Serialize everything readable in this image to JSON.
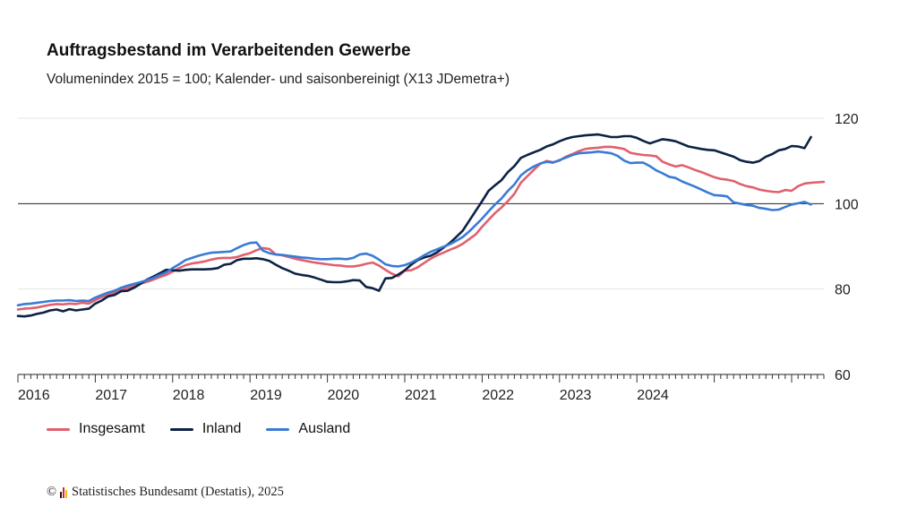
{
  "chart_data": {
    "type": "line",
    "title": "Auftragsbestand im Verarbeitenden Gewerbe",
    "subtitle": "Volumenindex 2015 = 100; Kalender- und saisonbereinigt (X13 JDemetra+)",
    "x_start": "2016-01",
    "x_ticks": [
      "2016",
      "2017",
      "2018",
      "2019",
      "2020",
      "2021",
      "2022",
      "2023",
      "2024"
    ],
    "ylim": [
      60,
      120
    ],
    "y_ticks": [
      60,
      80,
      100,
      120
    ],
    "reference_line": 100,
    "grid": true,
    "legend_position": "bottom-left",
    "series": [
      {
        "name": "Insgesamt",
        "color": "#e0606e",
        "values": [
          75.2,
          75.4,
          75.5,
          75.7,
          76.0,
          76.3,
          76.5,
          76.4,
          76.6,
          76.5,
          76.8,
          76.6,
          77.4,
          78.1,
          78.7,
          79.1,
          79.9,
          80.2,
          80.8,
          81.3,
          81.7,
          82.2,
          82.8,
          83.3,
          84.1,
          84.9,
          85.6,
          86.0,
          86.2,
          86.5,
          86.9,
          87.2,
          87.3,
          87.3,
          87.5,
          88.0,
          88.4,
          89.1,
          89.6,
          89.4,
          88.1,
          87.9,
          87.5,
          87.1,
          86.8,
          86.5,
          86.2,
          86.0,
          85.8,
          85.6,
          85.5,
          85.3,
          85.3,
          85.5,
          85.9,
          86.2,
          85.5,
          84.5,
          83.6,
          83.0,
          84.3,
          84.4,
          85.1,
          86.1,
          87.1,
          87.9,
          88.5,
          89.2,
          89.8,
          90.6,
          91.7,
          92.8,
          94.6,
          96.2,
          97.8,
          99.1,
          100.6,
          102.3,
          104.9,
          106.4,
          107.9,
          109.3,
          110.0,
          109.7,
          110.1,
          111.0,
          111.6,
          112.3,
          112.8,
          113.0,
          113.1,
          113.3,
          113.3,
          113.1,
          112.8,
          111.9,
          111.6,
          111.4,
          111.3,
          111.1,
          109.8,
          109.2,
          108.7,
          109.0,
          108.5,
          107.9,
          107.4,
          106.8,
          106.2,
          105.8,
          105.6,
          105.3,
          104.6,
          104.1,
          103.8,
          103.3,
          103.0,
          102.8,
          102.7,
          103.2,
          103.0,
          104.1,
          104.7,
          104.9,
          105.0,
          105.1
        ]
      },
      {
        "name": "Inland",
        "color": "#0d2244",
        "values": [
          73.7,
          73.6,
          73.8,
          74.2,
          74.5,
          75.0,
          75.2,
          74.8,
          75.3,
          75.0,
          75.2,
          75.4,
          76.6,
          77.3,
          78.3,
          78.6,
          79.5,
          79.6,
          80.3,
          81.2,
          82.2,
          82.9,
          83.7,
          84.5,
          84.4,
          84.3,
          84.5,
          84.6,
          84.6,
          84.6,
          84.7,
          84.9,
          85.7,
          85.9,
          86.8,
          87.1,
          87.1,
          87.2,
          87.0,
          86.6,
          85.7,
          84.9,
          84.3,
          83.6,
          83.3,
          83.1,
          82.7,
          82.2,
          81.7,
          81.6,
          81.6,
          81.8,
          82.1,
          82.0,
          80.5,
          80.2,
          79.6,
          82.5,
          82.6,
          83.4,
          84.4,
          85.7,
          86.8,
          87.4,
          87.8,
          88.6,
          89.7,
          90.8,
          92.2,
          93.7,
          96.0,
          98.3,
          100.6,
          103.0,
          104.3,
          105.5,
          107.4,
          108.8,
          110.7,
          111.4,
          112.0,
          112.6,
          113.4,
          113.9,
          114.6,
          115.2,
          115.6,
          115.8,
          116.0,
          116.1,
          116.2,
          115.9,
          115.6,
          115.6,
          115.8,
          115.8,
          115.4,
          114.7,
          114.1,
          114.6,
          115.1,
          114.9,
          114.6,
          114.0,
          113.4,
          113.1,
          112.8,
          112.6,
          112.5,
          112.0,
          111.5,
          111.0,
          110.2,
          109.8,
          109.6,
          110.0,
          111.0,
          111.6,
          112.5,
          112.8,
          113.5,
          113.4,
          113.0,
          115.6
        ]
      },
      {
        "name": "Ausland",
        "color": "#3a7bd5",
        "values": [
          76.2,
          76.5,
          76.6,
          76.8,
          77.0,
          77.2,
          77.3,
          77.3,
          77.4,
          77.2,
          77.3,
          77.2,
          78.0,
          78.6,
          79.2,
          79.6,
          80.3,
          80.8,
          81.2,
          81.6,
          82.1,
          82.6,
          83.3,
          83.9,
          84.9,
          85.8,
          86.8,
          87.3,
          87.8,
          88.2,
          88.5,
          88.6,
          88.7,
          88.8,
          89.6,
          90.3,
          90.8,
          90.9,
          89.0,
          88.4,
          88.1,
          88.0,
          87.8,
          87.6,
          87.4,
          87.3,
          87.1,
          87.0,
          87.0,
          87.1,
          87.1,
          87.0,
          87.3,
          88.1,
          88.3,
          87.8,
          86.9,
          85.8,
          85.4,
          85.3,
          85.6,
          86.2,
          87.0,
          87.9,
          88.7,
          89.3,
          89.9,
          90.5,
          91.3,
          92.2,
          93.5,
          95.0,
          96.5,
          98.2,
          99.8,
          101.2,
          103.0,
          104.5,
          106.6,
          107.8,
          108.7,
          109.4,
          109.8,
          109.6,
          110.2,
          110.8,
          111.4,
          111.8,
          111.9,
          112.0,
          112.2,
          112.0,
          111.8,
          111.2,
          110.1,
          109.5,
          109.6,
          109.6,
          108.8,
          107.8,
          107.1,
          106.3,
          106.0,
          105.2,
          104.6,
          104.0,
          103.3,
          102.6,
          102.0,
          101.9,
          101.7,
          100.3,
          100.0,
          99.7,
          99.5,
          99.0,
          98.8,
          98.5,
          98.6,
          99.2,
          99.8,
          100.1,
          100.4,
          99.8
        ]
      }
    ]
  },
  "footer": {
    "copyright_symbol": "©",
    "source": "Statistisches Bundesamt (Destatis), 2025",
    "logo_colors": [
      "#1a1a1a",
      "#d9242b",
      "#f2b807"
    ]
  }
}
